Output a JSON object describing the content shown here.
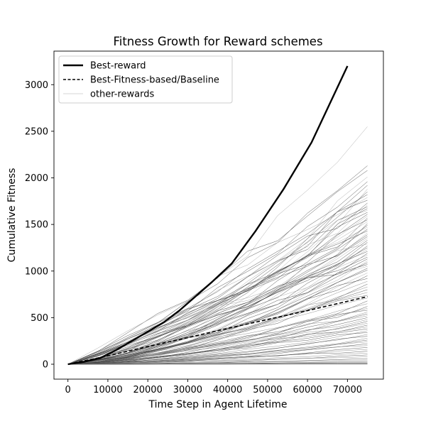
{
  "chart_data": {
    "type": "line",
    "title": "Fitness Growth for Reward schemes",
    "xlabel": "Time Step in Agent Lifetime",
    "ylabel": "Cumulative Fitness",
    "xlim": [
      -3500,
      79000
    ],
    "ylim": [
      -160,
      3360
    ],
    "xticks": [
      0,
      10000,
      20000,
      30000,
      40000,
      50000,
      60000,
      70000
    ],
    "yticks": [
      0,
      500,
      1000,
      1500,
      2000,
      2500,
      3000
    ],
    "xtick_labels": [
      "0",
      "10000",
      "20000",
      "30000",
      "40000",
      "50000",
      "60000",
      "70000"
    ],
    "ytick_labels": [
      "0",
      "500",
      "1000",
      "1500",
      "2000",
      "2500",
      "3000"
    ],
    "grid": false,
    "legend": {
      "position": "top-left",
      "entries": [
        {
          "label": "Best-reward",
          "style": "solid-thick",
          "color": "#000000"
        },
        {
          "label": "Best-Fitness-based/Baseline",
          "style": "dashed",
          "color": "#000000"
        },
        {
          "label": "other-rewards",
          "style": "solid-thin",
          "color": "#c8c8c8"
        }
      ]
    },
    "series": [
      {
        "name": "Best-reward",
        "x": [
          0,
          4000,
          8000,
          12000,
          16000,
          20000,
          24000,
          28000,
          32000,
          36000,
          41000,
          47000,
          54000,
          61000,
          70000
        ],
        "y": [
          0,
          25,
          65,
          150,
          250,
          350,
          450,
          580,
          730,
          880,
          1080,
          1430,
          1880,
          2380,
          3200
        ]
      },
      {
        "name": "Best-Fitness-based/Baseline",
        "x": [
          0,
          10000,
          20000,
          30000,
          40000,
          50000,
          60000,
          75000
        ],
        "y": [
          0,
          90,
          190,
          285,
          385,
          480,
          575,
          725
        ]
      }
    ],
    "other_rewards": {
      "x": [
        0,
        7500,
        15000,
        22500,
        30000,
        37500,
        45000,
        52500,
        60000,
        67500,
        75000
      ],
      "final_values": [
        2550,
        2130,
        2080,
        2010,
        1960,
        1920,
        1880,
        1850,
        1820,
        1790,
        1760,
        1730,
        1710,
        1690,
        1670,
        1650,
        1630,
        1610,
        1590,
        1570,
        1550,
        1530,
        1510,
        1490,
        1470,
        1450,
        1430,
        1410,
        1390,
        1370,
        1350,
        1330,
        1310,
        1290,
        1270,
        1250,
        1230,
        1210,
        1190,
        1170,
        1150,
        1130,
        1110,
        1090,
        1070,
        1050,
        1030,
        1010,
        980,
        950,
        920,
        890,
        860,
        830,
        800,
        770,
        740,
        710,
        680,
        650,
        620,
        600,
        580,
        560,
        540,
        520,
        500,
        480,
        460,
        440,
        420,
        400,
        380,
        360,
        340,
        320,
        300,
        280,
        260,
        240,
        220,
        200,
        180,
        160,
        140,
        120,
        100,
        80,
        60,
        45,
        30,
        20,
        12,
        6,
        3,
        1
      ],
      "color": "#000000"
    }
  }
}
